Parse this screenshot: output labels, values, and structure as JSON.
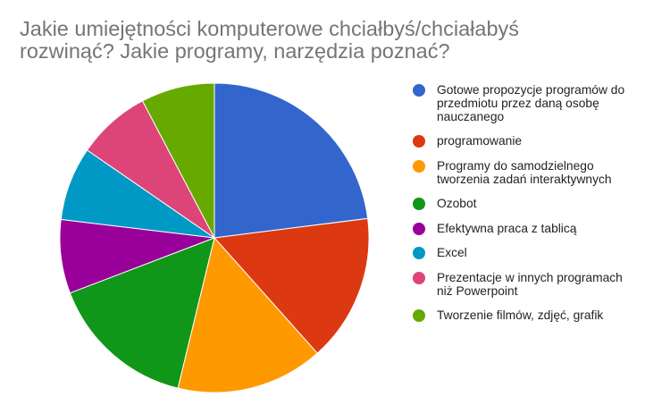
{
  "chart_data": {
    "type": "pie",
    "title_lines": [
      "Jakie umiejętności komputerowe chciałbyś/chciałabyś",
      "rozwinąć? Jakie programy, narzędzia poznać?"
    ],
    "slices": [
      {
        "label_lines": [
          "Gotowe propozycje programów do",
          "przedmiotu przez daną osobę",
          "nauczanego"
        ],
        "value": 23,
        "color": "#3366cc"
      },
      {
        "label_lines": [
          "programowanie"
        ],
        "value": 15.4,
        "color": "#dc3912"
      },
      {
        "label_lines": [
          "Programy do samodzielnego",
          "tworzenia zadań interaktywnych"
        ],
        "value": 15.4,
        "color": "#ff9900"
      },
      {
        "label_lines": [
          "Ozobot"
        ],
        "value": 15.4,
        "color": "#109618"
      },
      {
        "label_lines": [
          "Efektywna praca z tablicą"
        ],
        "value": 7.7,
        "color": "#990099"
      },
      {
        "label_lines": [
          "Excel"
        ],
        "value": 7.7,
        "color": "#0099c6"
      },
      {
        "label_lines": [
          "Prezentacje w innych programach",
          "niż Powerpoint"
        ],
        "value": 7.7,
        "color": "#dd4477"
      },
      {
        "label_lines": [
          "Tworzenie filmów, zdjęć, grafik"
        ],
        "value": 7.7,
        "color": "#66aa00"
      }
    ],
    "legend_position": "right",
    "start_angle_deg": 0,
    "direction": "clockwise"
  }
}
